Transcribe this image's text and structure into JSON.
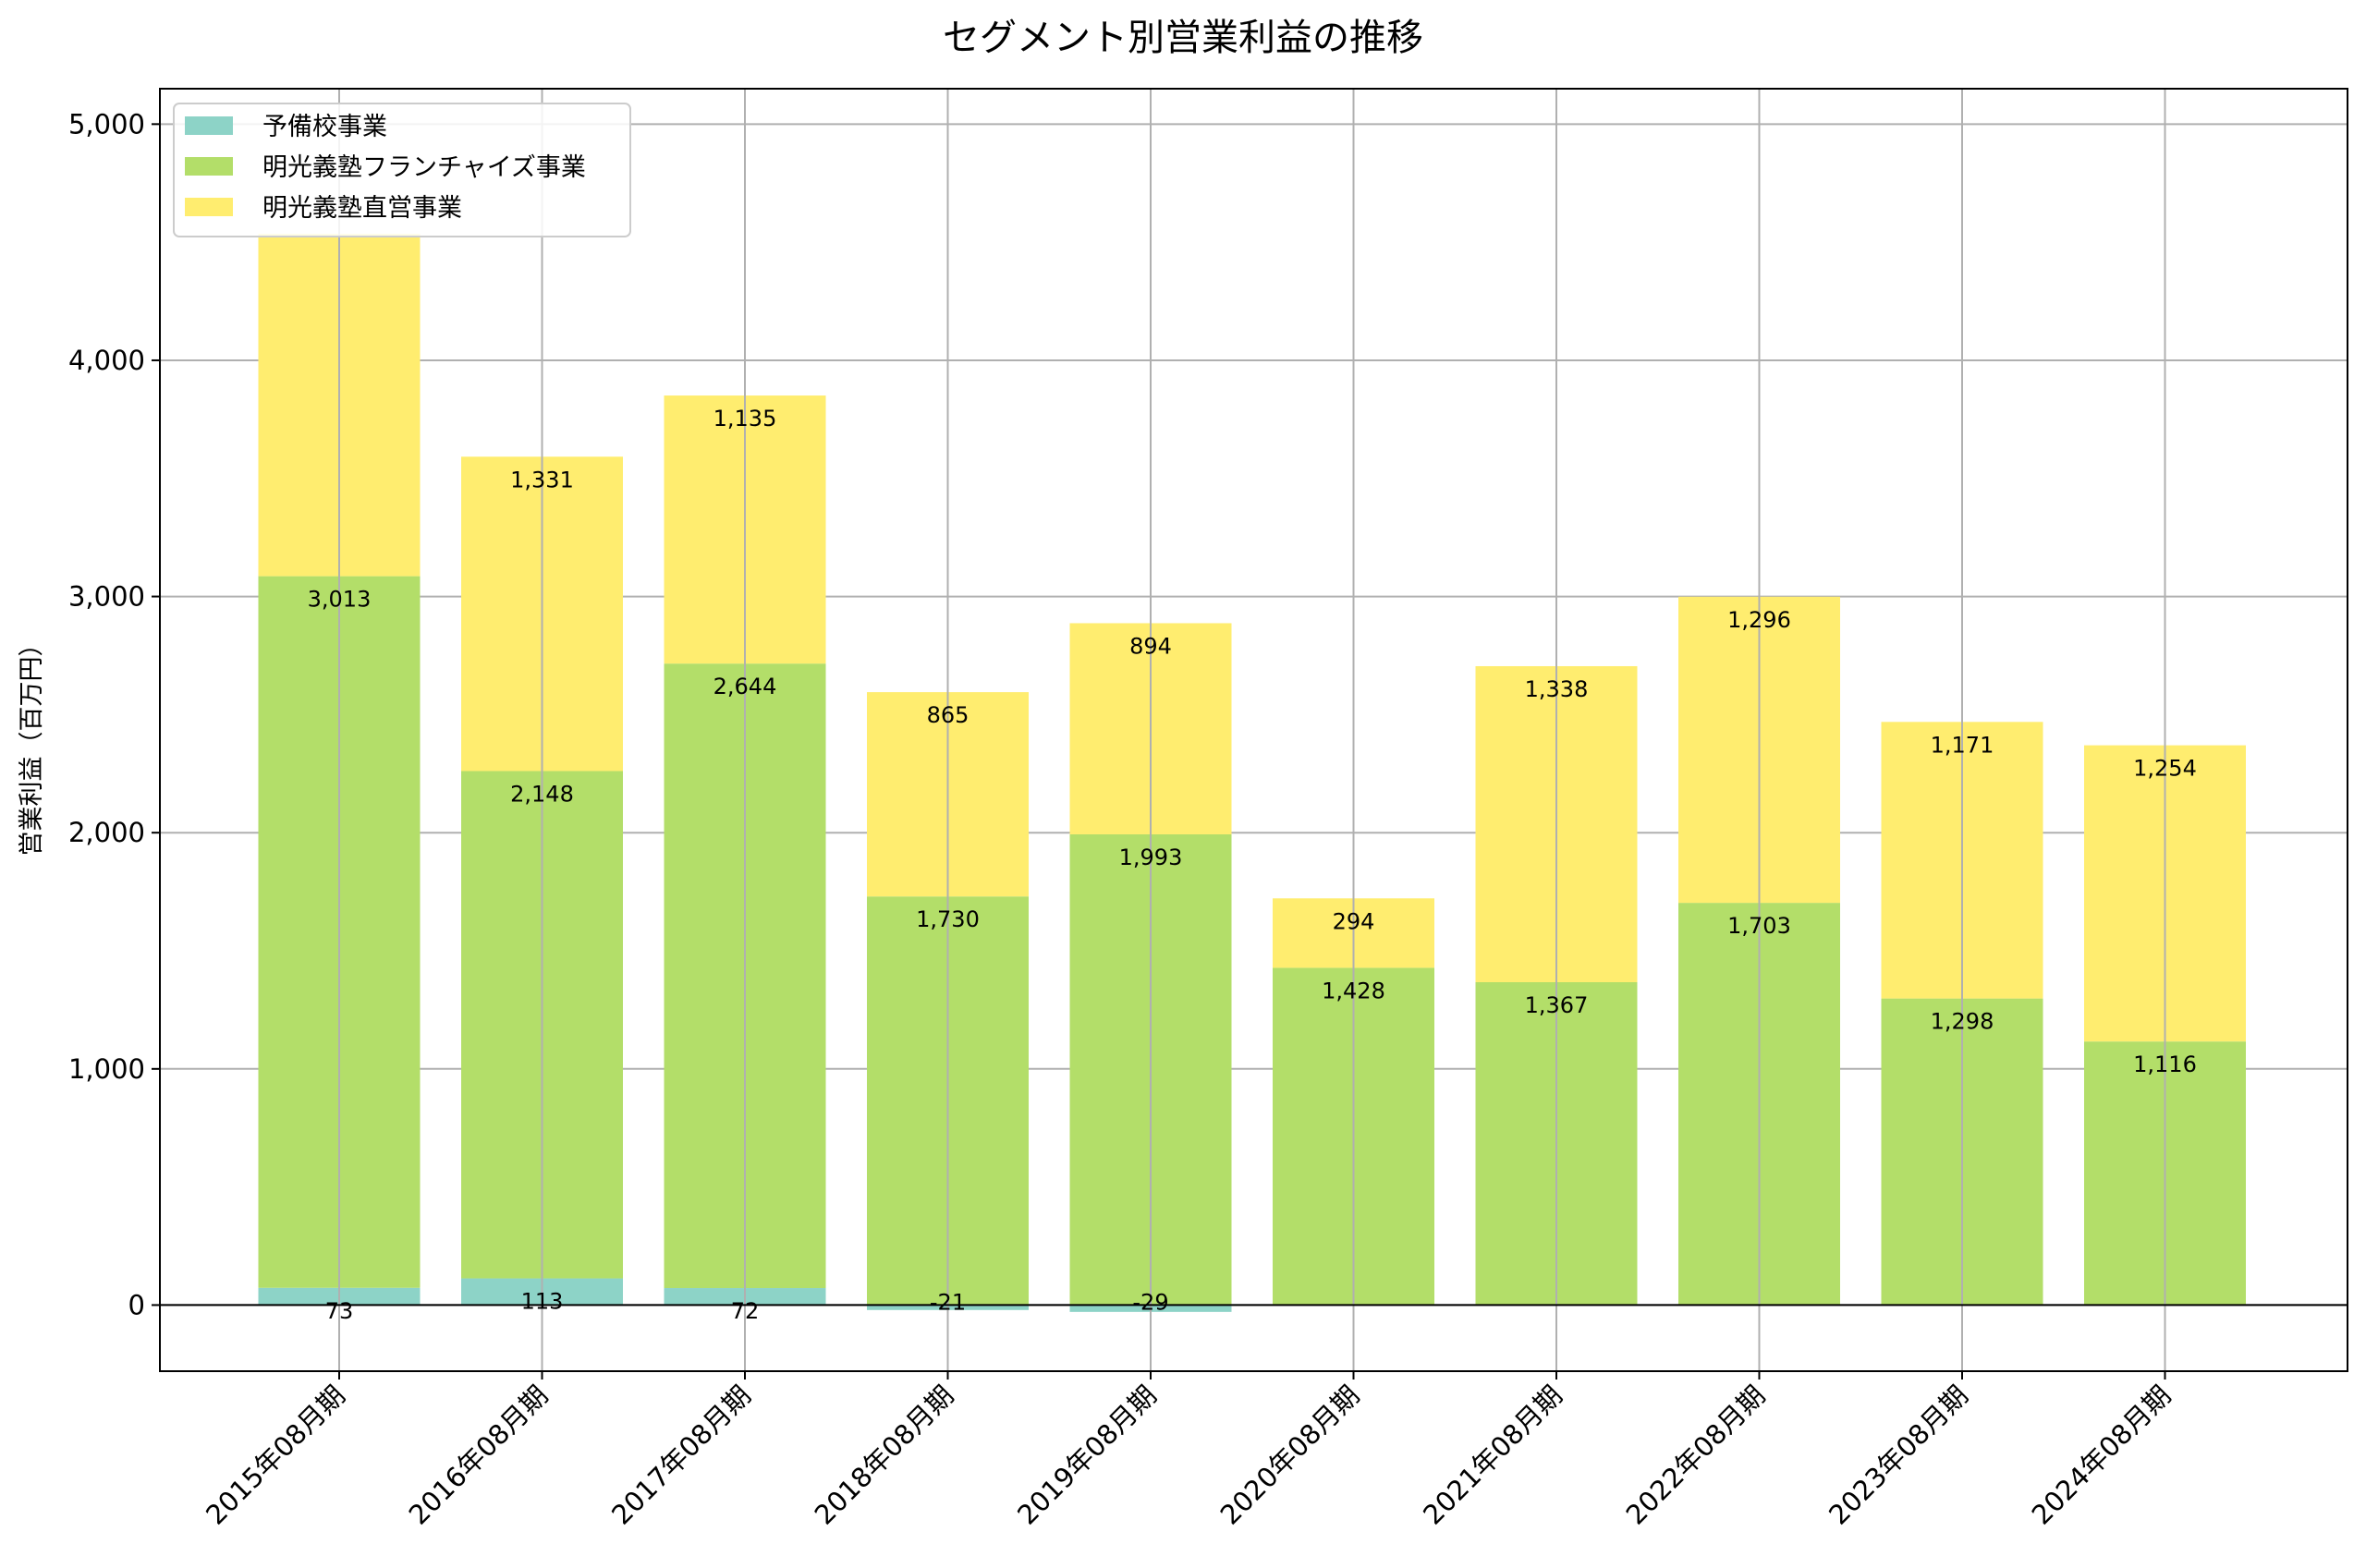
{
  "chart_data": {
    "type": "bar",
    "stacked": true,
    "title": "セグメント別営業利益の推移",
    "xlabel": "",
    "ylabel": "営業利益（百万円）",
    "ylim": [
      -280,
      5150
    ],
    "yticks": [
      0,
      1000,
      2000,
      3000,
      4000,
      5000
    ],
    "ytick_labels": [
      "0",
      "1,000",
      "2,000",
      "3,000",
      "4,000",
      "5,000"
    ],
    "grid": true,
    "legend_position": "top-left",
    "categories": [
      "2015年08月期",
      "2016年08月期",
      "2017年08月期",
      "2018年08月期",
      "2019年08月期",
      "2020年08月期",
      "2021年08月期",
      "2022年08月期",
      "2023年08月期",
      "2024年08月期"
    ],
    "series": [
      {
        "name": "予備校事業",
        "color": "#8dd3c7",
        "values": [
          73,
          113,
          72,
          -21,
          -29,
          null,
          null,
          null,
          null,
          null
        ],
        "labels": [
          "73",
          "113",
          "72",
          "-21",
          "-29",
          "",
          "",
          "",
          "",
          ""
        ]
      },
      {
        "name": "明光義塾フランチャイズ事業",
        "color": "#b3de69",
        "values": [
          3013,
          2148,
          2644,
          1730,
          1993,
          1428,
          1367,
          1703,
          1298,
          1116
        ],
        "labels": [
          "3,013",
          "2,148",
          "2,644",
          "1,730",
          "1,993",
          "1,428",
          "1,367",
          "1,703",
          "1,298",
          "1,116"
        ]
      },
      {
        "name": "明光義塾直営事業",
        "color": "#ffed6f",
        "values": [
          1450,
          1331,
          1135,
          865,
          894,
          294,
          1338,
          1296,
          1171,
          1254
        ],
        "labels": [
          "",
          "1,331",
          "1,135",
          "865",
          "894",
          "294",
          "1,338",
          "1,296",
          "1,171",
          "1,254"
        ]
      }
    ]
  }
}
